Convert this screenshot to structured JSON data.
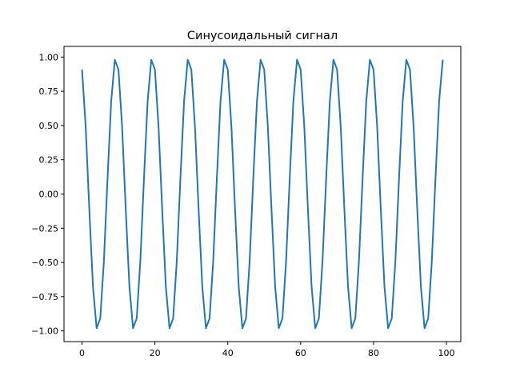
{
  "chart_data": {
    "type": "line",
    "title": "Синусоидальный сигнал",
    "xlabel": "",
    "ylabel": "",
    "xlim": [
      -4.95,
      103.95
    ],
    "ylim": [
      -1.078,
      1.078
    ],
    "xticks": [
      0,
      20,
      40,
      60,
      80,
      100
    ],
    "xtick_labels": [
      "0",
      "20",
      "40",
      "60",
      "80",
      "100"
    ],
    "yticks": [
      -1.0,
      -0.75,
      -0.5,
      -0.25,
      0.0,
      0.25,
      0.5,
      0.75,
      1.0
    ],
    "ytick_labels": [
      "−1.00",
      "−0.75",
      "−0.50",
      "−0.25",
      "0.00",
      "0.25",
      "0.50",
      "0.75",
      "1.00"
    ],
    "grid": false,
    "series": [
      {
        "color": "#1f77b4",
        "x_start": 0,
        "x_step": 1,
        "values": [
          0.909,
          0.49,
          -0.115,
          -0.677,
          -0.98,
          -0.909,
          -0.49,
          0.115,
          0.677,
          0.98,
          0.909,
          0.49,
          -0.115,
          -0.677,
          -0.98,
          -0.909,
          -0.49,
          0.115,
          0.677,
          0.98,
          0.909,
          0.49,
          -0.115,
          -0.677,
          -0.98,
          -0.909,
          -0.49,
          0.115,
          0.677,
          0.98,
          0.909,
          0.49,
          -0.115,
          -0.677,
          -0.98,
          -0.909,
          -0.49,
          0.115,
          0.677,
          0.98,
          0.909,
          0.49,
          -0.115,
          -0.677,
          -0.98,
          -0.909,
          -0.49,
          0.115,
          0.677,
          0.98,
          0.909,
          0.49,
          -0.115,
          -0.677,
          -0.98,
          -0.909,
          -0.49,
          0.115,
          0.677,
          0.98,
          0.909,
          0.49,
          -0.115,
          -0.677,
          -0.98,
          -0.909,
          -0.49,
          0.115,
          0.677,
          0.98,
          0.909,
          0.49,
          -0.115,
          -0.677,
          -0.98,
          -0.909,
          -0.49,
          0.115,
          0.677,
          0.98,
          0.909,
          0.49,
          -0.115,
          -0.677,
          -0.98,
          -0.909,
          -0.49,
          0.115,
          0.677,
          0.98,
          0.909,
          0.49,
          -0.115,
          -0.677,
          -0.98,
          -0.909,
          -0.49,
          0.115,
          0.677,
          0.98
        ]
      }
    ]
  }
}
